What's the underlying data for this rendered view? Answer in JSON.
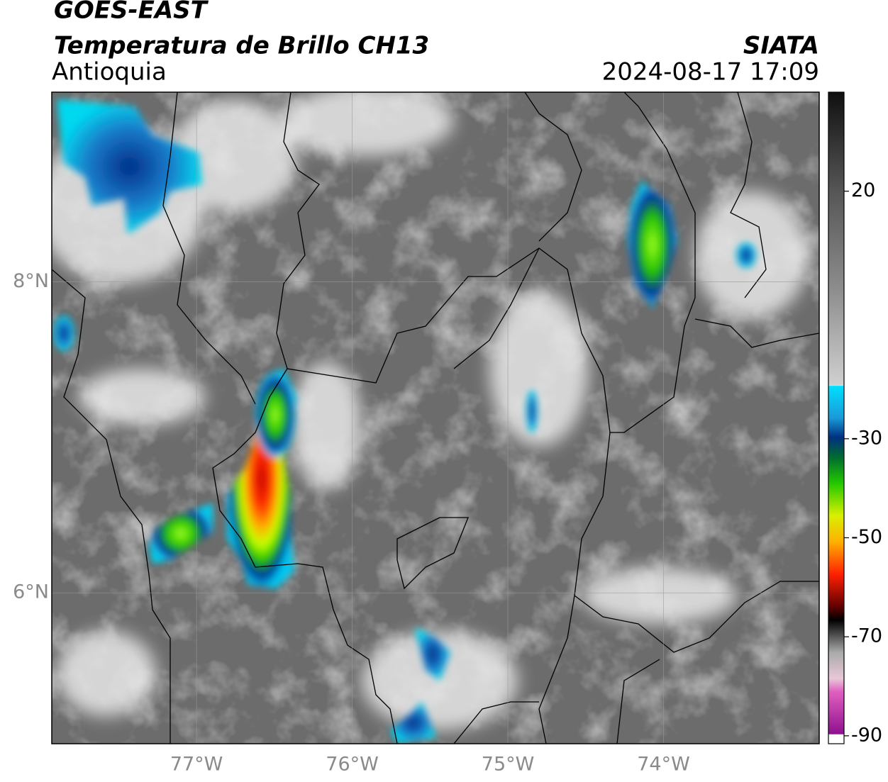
{
  "header": {
    "title": "GOES-EAST",
    "subtitle": "Temperatura de Brillo CH13",
    "region": "Antioquia",
    "source": "SIATA",
    "datetime": "2024-08-17 17:09"
  },
  "map": {
    "xlim": [
      -77.93,
      -73.0
    ],
    "ylim": [
      5.03,
      9.22
    ],
    "xticks": [
      {
        "value": -77,
        "label": "77°W"
      },
      {
        "value": -76,
        "label": "76°W"
      },
      {
        "value": -75,
        "label": "75°W"
      },
      {
        "value": -74,
        "label": "74°W"
      }
    ],
    "yticks": [
      {
        "value": 8,
        "label": "8°N"
      },
      {
        "value": 6,
        "label": "6°N"
      }
    ],
    "grid": true
  },
  "colorbar": {
    "lim": [
      -91.6,
      40
    ],
    "ticks": [
      20,
      -30,
      -50,
      -70,
      -90
    ]
  }
}
